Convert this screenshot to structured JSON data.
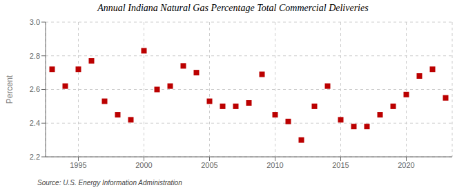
{
  "chart_data": {
    "type": "scatter",
    "title": "Annual Indiana Natural Gas Percentage Total Commercial Deliveries",
    "y_label": "Percent",
    "source": "Source: U.S. Energy Information Administration",
    "x": [
      1993,
      1994,
      1995,
      1996,
      1997,
      1998,
      1999,
      2000,
      2001,
      2002,
      2003,
      2004,
      2005,
      2006,
      2007,
      2008,
      2009,
      2010,
      2011,
      2012,
      2013,
      2014,
      2015,
      2016,
      2017,
      2018,
      2019,
      2020,
      2021,
      2022,
      2023
    ],
    "values": [
      2.72,
      2.62,
      2.72,
      2.77,
      2.53,
      2.45,
      2.42,
      2.83,
      2.6,
      2.62,
      2.74,
      2.7,
      2.53,
      2.5,
      2.5,
      2.52,
      2.69,
      2.45,
      2.41,
      2.3,
      2.5,
      2.62,
      2.42,
      2.38,
      2.38,
      2.45,
      2.5,
      2.57,
      2.68,
      2.72,
      2.55
    ],
    "xlim": [
      1992.5,
      2023.5
    ],
    "ylim": [
      2.2,
      3.0
    ],
    "xticks": [
      1995,
      2000,
      2005,
      2010,
      2015,
      2020
    ],
    "yticks": [
      2.2,
      2.4,
      2.6,
      2.8,
      {
        "value": 3.0,
        "label": "3.0"
      }
    ],
    "grid": true,
    "color": "#bb0000",
    "marker": "square"
  }
}
